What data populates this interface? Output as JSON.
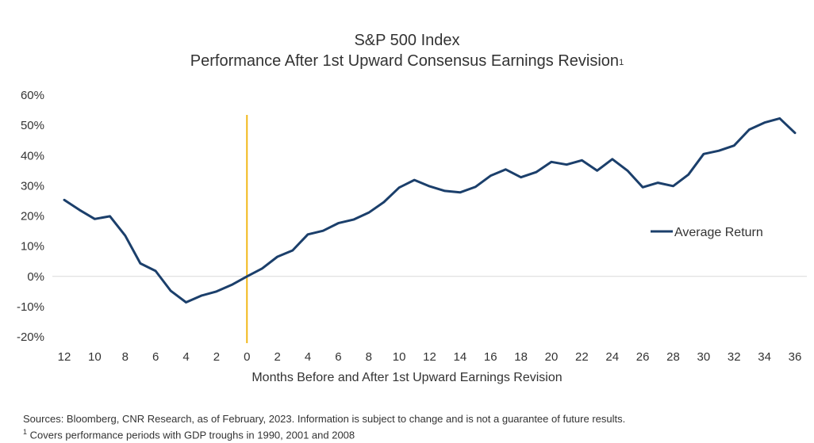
{
  "chart_data": {
    "type": "line",
    "title_line1": "S&P 500 Index",
    "title_line2": "Performance After 1st Upward Consensus Earnings Revision",
    "title_superscript": "1",
    "xlabel": "Months Before and After 1st Upward Earnings Revision",
    "ylabel": "",
    "x_tick_labels": [
      "12",
      "10",
      "8",
      "6",
      "4",
      "2",
      "0",
      "2",
      "4",
      "6",
      "8",
      "10",
      "12",
      "14",
      "16",
      "18",
      "20",
      "22",
      "24",
      "26",
      "28",
      "30",
      "32",
      "34",
      "36"
    ],
    "y_tick_labels": [
      "60%",
      "50%",
      "40%",
      "30%",
      "20%",
      "10%",
      "0%",
      "-10%",
      "-20%"
    ],
    "ylim": [
      -20,
      60
    ],
    "xlim": [
      -12,
      36
    ],
    "x": [
      -12,
      -11,
      -10,
      -9,
      -8,
      -7,
      -6,
      -5,
      -4,
      -3,
      -2,
      -1,
      0,
      1,
      2,
      3,
      4,
      5,
      6,
      7,
      8,
      9,
      10,
      11,
      12,
      13,
      14,
      15,
      16,
      17,
      18,
      19,
      20,
      21,
      22,
      23,
      24,
      25,
      26,
      27,
      28,
      29,
      30,
      31,
      32,
      33,
      34,
      35,
      36
    ],
    "series": [
      {
        "name": "Average Return",
        "color": "#1b3f6b",
        "values": [
          25.3,
          22,
          19,
          19.9,
          13.5,
          4.3,
          1.8,
          -4.8,
          -8.6,
          -6.4,
          -5,
          -2.8,
          0,
          2.6,
          6.5,
          8.6,
          13.9,
          15.1,
          17.6,
          18.8,
          21.1,
          24.6,
          29.4,
          31.9,
          29.8,
          28.3,
          27.8,
          29.6,
          33.3,
          35.4,
          32.8,
          34.5,
          37.9,
          37,
          38.4,
          35,
          38.8,
          35,
          29.5,
          31,
          29.9,
          33.7,
          40.5,
          41.6,
          43.3,
          48.6,
          50.9,
          52.3,
          47.5
        ]
      }
    ],
    "vertical_marker": {
      "x": 0,
      "color": "#f2b81b"
    },
    "grid": "zero line only",
    "legend_position": "right"
  },
  "footnotes": {
    "sources": "Sources: Bloomberg, CNR Research, as of February, 2023.  Information is subject to change and is not a guarantee of future results.",
    "note_mark": "1",
    "note_text": " Covers performance periods with GDP troughs in 1990, 2001 and 2008"
  }
}
